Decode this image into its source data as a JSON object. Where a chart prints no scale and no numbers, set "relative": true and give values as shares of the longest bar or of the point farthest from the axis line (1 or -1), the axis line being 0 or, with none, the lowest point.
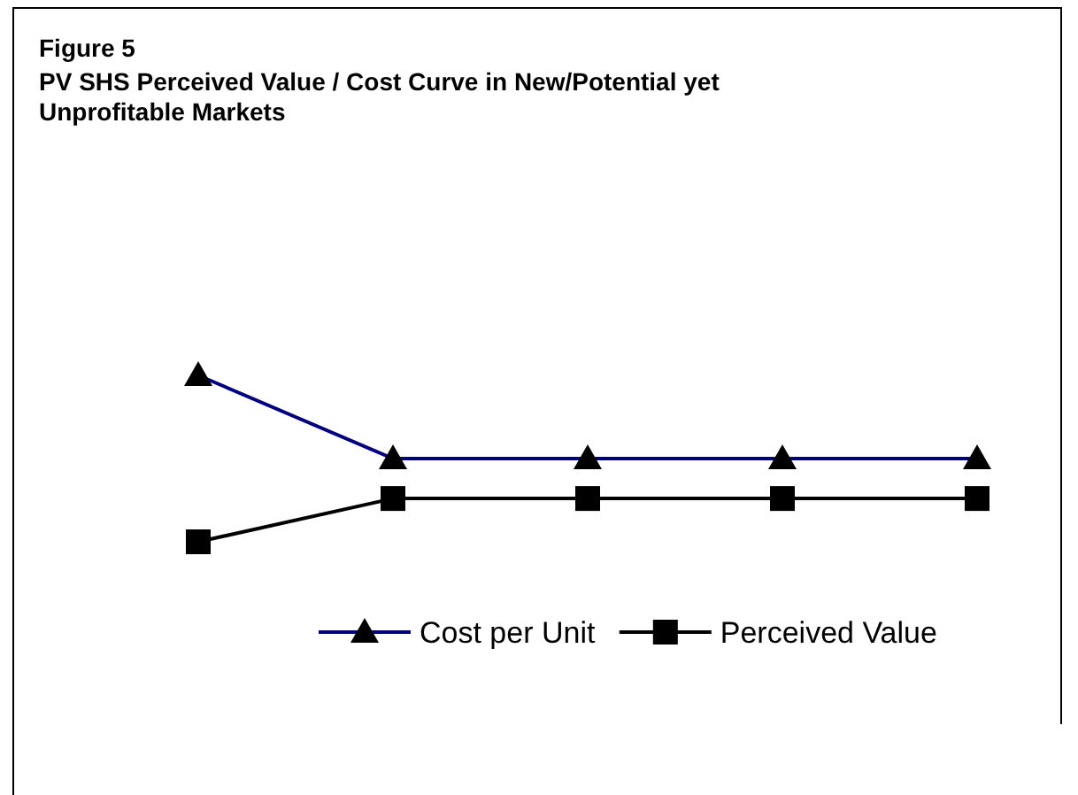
{
  "chart_data": {
    "type": "line",
    "relative": true,
    "title": "Figure 5",
    "subtitle": "PV SHS Perceived Value / Cost Curve in New/Potential yet Unprofitable Markets",
    "categories": [
      null,
      null,
      null,
      null,
      null
    ],
    "series": [
      {
        "name": "Cost per Unit",
        "color": "#000080",
        "marker": "triangle",
        "values": [
          1,
          0.5,
          0.5,
          0.5,
          0.5
        ]
      },
      {
        "name": "Perceived Value",
        "color": "#000000",
        "marker": "square",
        "values": [
          0,
          0.26,
          0.26,
          0.26,
          0.26
        ]
      }
    ],
    "legend": "bottom",
    "line_style": "solid"
  }
}
